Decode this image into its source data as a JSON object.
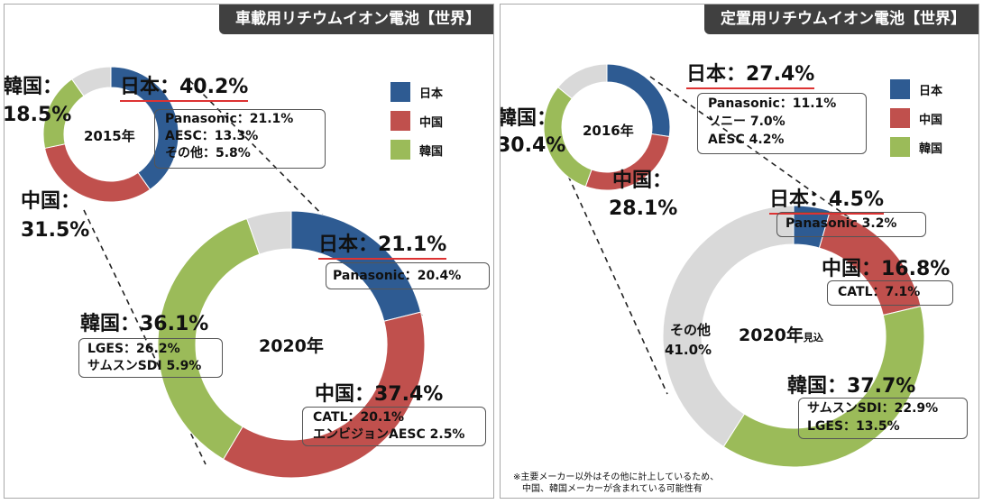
{
  "left_panel": {
    "title": "車載用リチウムイオン電池【世界】",
    "donut_2015": {
      "year": "2015年",
      "japan_label": "日本：40.2%",
      "japan_details": [
        "Panasonic：21.1%",
        "AESC：13.3%",
        "その他：5.8%"
      ],
      "korea_label_1": "韓国：",
      "korea_label_2": "18.5%",
      "china_label_1": "中国：",
      "china_label_2": "31.5%"
    },
    "donut_2020": {
      "year": "2020年",
      "japan_label": "日本：21.1%",
      "japan_details": [
        "Panasonic：20.4%"
      ],
      "china_label": "中国：37.4%",
      "china_details": [
        "CATL：20.1%",
        "エンビジョンAESC 2.5%"
      ],
      "korea_label": "韓国：36.1%",
      "korea_details": [
        "LGES：26.2%",
        "サムスンSDI 5.9%"
      ]
    },
    "legend": [
      "日本",
      "中国",
      "韓国"
    ]
  },
  "right_panel": {
    "title": "定置用リチウムイオン電池【世界】",
    "donut_2016": {
      "year": "2016年",
      "japan_label": "日本：27.4%",
      "japan_details": [
        "Panasonic：11.1%",
        "ソニー 7.0%",
        "AESC 4.2%"
      ],
      "korea_label_1": "韓国：",
      "korea_label_2": "30.4%",
      "china_label_1": "中国：",
      "china_label_2": "28.1%"
    },
    "donut_2020": {
      "year": "2020年",
      "year_suffix": "見込",
      "japan_label": "日本：4.5%",
      "japan_details": [
        "Panasonic 3.2%"
      ],
      "china_label": "中国：16.8%",
      "china_details": [
        "CATL：7.1%"
      ],
      "korea_label": "韓国：37.7%",
      "korea_details": [
        "サムスンSDI：22.9%",
        "LGES：13.5%"
      ],
      "other_label_1": "その他",
      "other_label_2": "41.0%"
    },
    "legend": [
      "日本",
      "中国",
      "韓国"
    ],
    "footnote_1": "※主要メーカー以外はその他に計上しているため、",
    "footnote_2": "　中国、韓国メーカーが含まれている可能性有"
  },
  "colors": {
    "japan": "#2e5b92",
    "china": "#c0504d",
    "korea": "#9bbb59",
    "other": "#d9d9d9"
  },
  "chart_data": [
    {
      "type": "pie",
      "title": "車載用リチウムイオン電池【世界】 2015年",
      "categories": [
        "日本",
        "中国",
        "韓国",
        "その他"
      ],
      "values": [
        40.2,
        31.5,
        18.5,
        9.8
      ]
    },
    {
      "type": "pie",
      "title": "車載用リチウムイオン電池【世界】 2020年",
      "categories": [
        "日本",
        "中国",
        "韓国",
        "その他"
      ],
      "values": [
        21.1,
        37.4,
        36.1,
        5.4
      ]
    },
    {
      "type": "pie",
      "title": "定置用リチウムイオン電池【世界】 2016年",
      "categories": [
        "日本",
        "中国",
        "韓国",
        "その他"
      ],
      "values": [
        27.4,
        28.1,
        30.4,
        14.1
      ]
    },
    {
      "type": "pie",
      "title": "定置用リチウムイオン電池【世界】 2020年見込",
      "categories": [
        "日本",
        "中国",
        "韓国",
        "その他"
      ],
      "values": [
        4.5,
        16.8,
        37.7,
        41.0
      ]
    }
  ]
}
